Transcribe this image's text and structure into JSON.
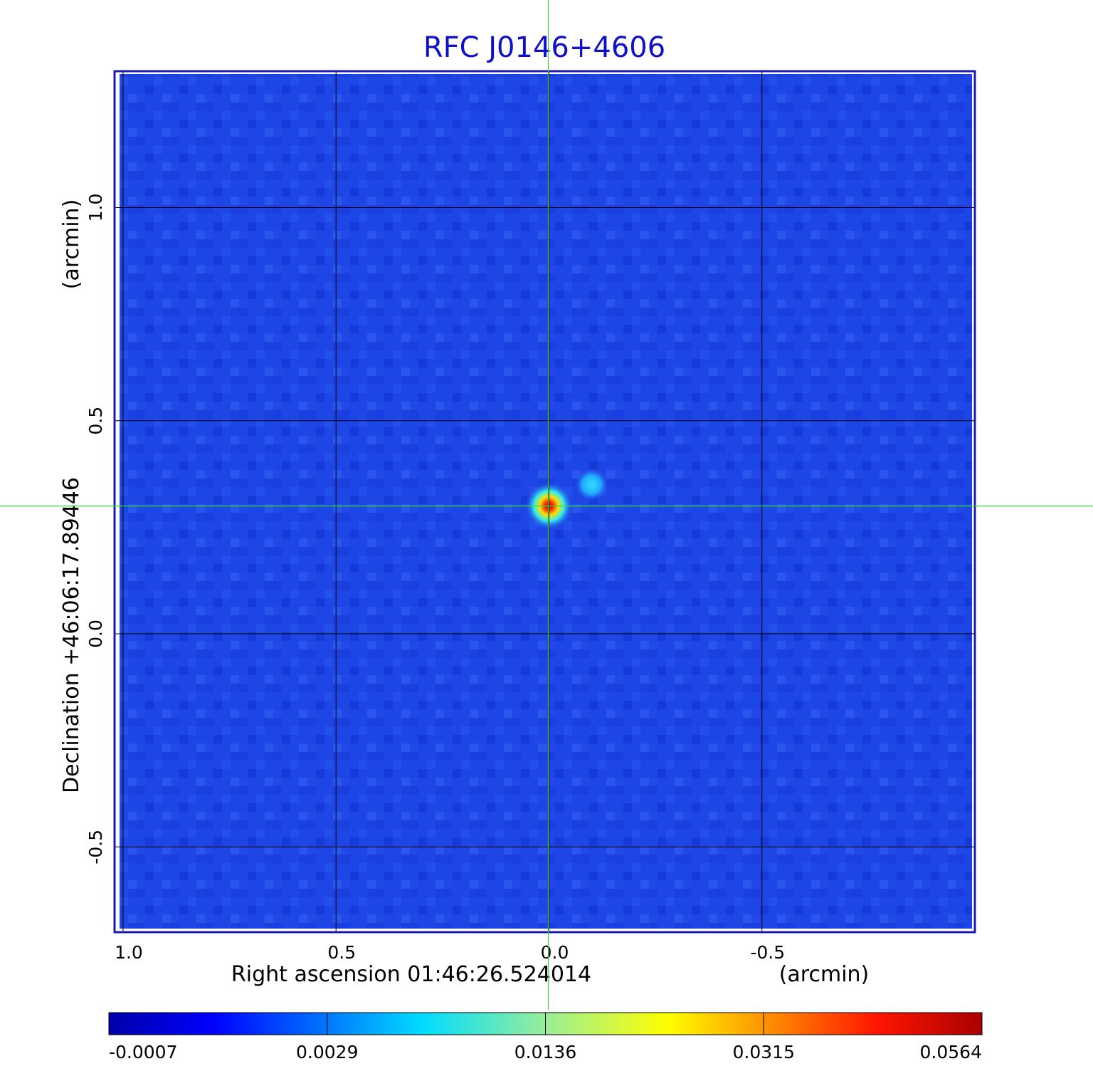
{
  "chart_data": {
    "type": "heatmap",
    "title": "RFC J0146+4606",
    "xlabel": "Right ascension  01:46:26.524014",
    "xunit": "(arcmin)",
    "ylabel": "Declination  +46:06:17.89446",
    "yunit": "(arcmin)",
    "xlim": [
      1.02,
      -1.0
    ],
    "ylim": [
      -0.7,
      1.32
    ],
    "xticks": [
      {
        "value": 1.0,
        "label": "1.0"
      },
      {
        "value": 0.5,
        "label": "0.5"
      },
      {
        "value": 0.0,
        "label": "0.0"
      },
      {
        "value": -0.5,
        "label": "-0.5"
      }
    ],
    "yticks": [
      {
        "value": 1.0,
        "label": "1.0"
      },
      {
        "value": 0.5,
        "label": "0.5"
      },
      {
        "value": 0.0,
        "label": "0.0"
      },
      {
        "value": -0.5,
        "label": "-0.5"
      }
    ],
    "grid": true,
    "crosshair": {
      "x": 0.0,
      "y": 0.3
    },
    "sources": [
      {
        "x": 0.0,
        "y": 0.3,
        "peak": 0.0564
      },
      {
        "x": -0.1,
        "y": 0.35,
        "peak": 0.006
      }
    ],
    "colorbar": {
      "labels": [
        "-0.0007",
        "0.0029",
        "0.0136",
        "0.0315",
        "0.0564"
      ],
      "colormap": "jet"
    },
    "colors": {
      "title": "#1010c8",
      "frame": "#1a1ab4",
      "crosshair": "#33dd33",
      "grid": "#000000",
      "background_map": "#1e46e6"
    }
  }
}
